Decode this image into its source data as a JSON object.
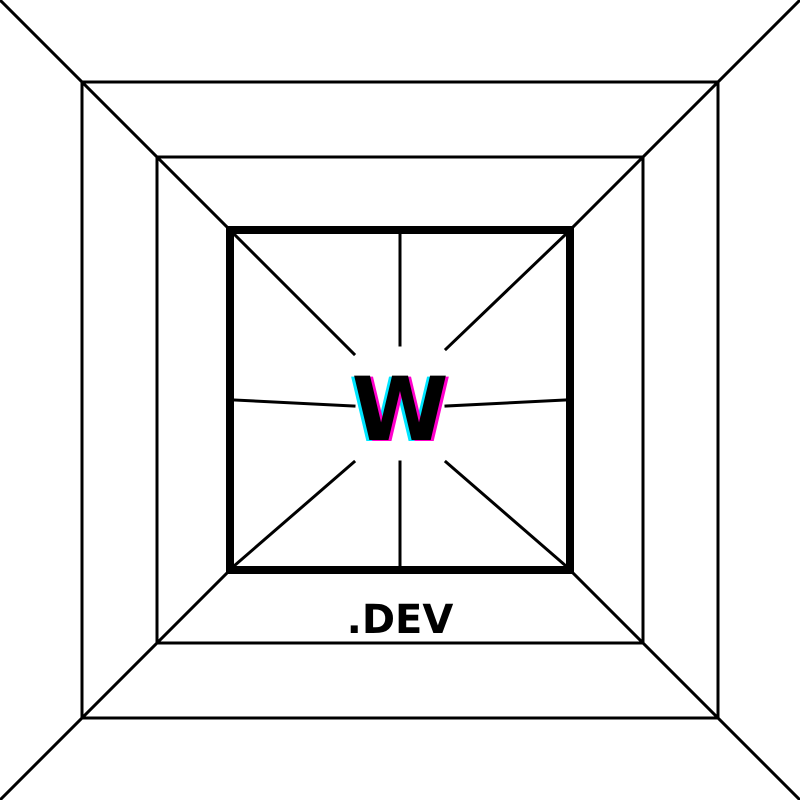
{
  "logo": {
    "letter": "W",
    "tld": ".DEV",
    "colors": {
      "stroke": "#000000",
      "background": "#ffffff",
      "letter_fill": "#000000",
      "glitch_cyan": "#00e5ff",
      "glitch_magenta": "#ff00cc"
    }
  }
}
